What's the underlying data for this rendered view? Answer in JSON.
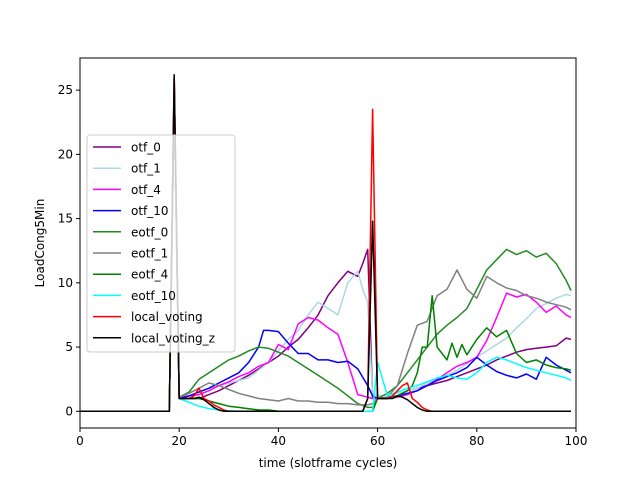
{
  "chart_data": {
    "type": "line",
    "title": "",
    "xlabel": "time (slotframe cycles)",
    "ylabel": "LoadCong5Min",
    "xlim": [
      0,
      100
    ],
    "ylim": [
      -1.3,
      27.5
    ],
    "xticks": [
      0,
      20,
      40,
      60,
      80,
      100
    ],
    "yticks": [
      0,
      5,
      10,
      15,
      20,
      25
    ],
    "grid": false,
    "legend_position": "upper-left",
    "series": [
      {
        "name": "otf_0",
        "color": "#800080",
        "x": [
          0,
          18,
          19,
          20,
          22,
          24,
          26,
          28,
          30,
          32,
          34,
          36,
          38,
          40,
          42,
          44,
          46,
          48,
          50,
          52,
          54,
          56,
          57,
          58,
          59,
          60,
          62,
          64,
          66,
          68,
          70,
          72,
          74,
          76,
          78,
          80,
          82,
          84,
          86,
          88,
          90,
          92,
          94,
          96,
          98,
          99
        ],
        "y": [
          0,
          0,
          26,
          1,
          1,
          1,
          1.3,
          1.6,
          2,
          2.4,
          2.8,
          3.3,
          3.8,
          4.3,
          5,
          5.6,
          6.5,
          7.5,
          9,
          10,
          10.9,
          10.5,
          11.5,
          12.6,
          1,
          1,
          1,
          1.2,
          1.6,
          1.8,
          2,
          2.2,
          2.4,
          2.7,
          3,
          3.3,
          3.6,
          4,
          4.3,
          4.6,
          4.8,
          4.9,
          5,
          5.1,
          5.7,
          5.6
        ]
      },
      {
        "name": "otf_1",
        "color": "#add8e6",
        "x": [
          0,
          18,
          19,
          20,
          22,
          24,
          26,
          28,
          30,
          32,
          34,
          36,
          38,
          40,
          42,
          44,
          46,
          48,
          50,
          52,
          54,
          56,
          57,
          58,
          59,
          60,
          62,
          64,
          66,
          68,
          70,
          72,
          74,
          76,
          78,
          80,
          82,
          84,
          86,
          88,
          90,
          92,
          94,
          96,
          98,
          99
        ],
        "y": [
          0,
          0,
          25,
          1,
          1.2,
          1.5,
          1.8,
          2,
          2.2,
          2.4,
          2.6,
          3.2,
          3.8,
          4.7,
          5.6,
          6.3,
          7.5,
          8.5,
          8,
          7.5,
          10,
          10.9,
          9.5,
          8.5,
          1.3,
          1.2,
          1.3,
          1.4,
          1.6,
          1.8,
          2.2,
          2.5,
          2.8,
          3.2,
          3.7,
          4.2,
          4.7,
          5.2,
          5.7,
          6.5,
          7.2,
          8,
          8.4,
          8.8,
          9.1,
          9
        ]
      },
      {
        "name": "otf_4",
        "color": "#ff00ff",
        "x": [
          0,
          18,
          19,
          20,
          22,
          24,
          26,
          28,
          30,
          32,
          34,
          36,
          38,
          40,
          42,
          44,
          46,
          48,
          50,
          52,
          54,
          56,
          58,
          59,
          60,
          62,
          64,
          66,
          68,
          70,
          72,
          74,
          76,
          78,
          80,
          82,
          84,
          86,
          88,
          90,
          92,
          94,
          96,
          98,
          99
        ],
        "y": [
          0,
          0,
          24,
          1.1,
          1.2,
          1.3,
          1.6,
          2,
          2.3,
          2.7,
          3,
          3.5,
          3.8,
          5.2,
          4.8,
          6.8,
          7.3,
          7.1,
          6.5,
          6,
          3.8,
          1.3,
          1.1,
          1,
          1,
          1,
          1.1,
          1.3,
          1.6,
          2,
          2.5,
          3,
          3.5,
          3.8,
          4.2,
          5.5,
          7.3,
          9.2,
          8.9,
          9.1,
          8.5,
          7.7,
          8.2,
          7.5,
          7.3
        ]
      },
      {
        "name": "otf_10",
        "color": "#0000ff",
        "x": [
          0,
          18,
          19,
          20,
          22,
          24,
          26,
          28,
          30,
          32,
          34,
          36,
          37,
          38,
          40,
          42,
          44,
          46,
          48,
          50,
          52,
          54,
          56,
          58,
          59,
          60,
          62,
          64,
          66,
          68,
          70,
          72,
          74,
          76,
          78,
          80,
          82,
          84,
          86,
          88,
          90,
          92,
          94,
          96,
          98,
          99
        ],
        "y": [
          0,
          0,
          24,
          1,
          1.2,
          1.5,
          1.8,
          2.2,
          2.6,
          3,
          3.8,
          5,
          6.3,
          6.3,
          6.2,
          5.3,
          4.5,
          4.5,
          4,
          4,
          3.8,
          3.9,
          3.3,
          2,
          1.2,
          1,
          1.1,
          1.2,
          1.4,
          1.6,
          2,
          2.4,
          2.7,
          3,
          3.4,
          4.2,
          3.6,
          3.1,
          2.8,
          2.6,
          2.9,
          2.5,
          4.2,
          3.6,
          3.2,
          3
        ]
      },
      {
        "name": "eotf_0",
        "color": "#228b22",
        "x": [
          0,
          18,
          19,
          20,
          22,
          24,
          26,
          28,
          30,
          32,
          34,
          36,
          38,
          40,
          42,
          44,
          46,
          48,
          50,
          52,
          54,
          56,
          58,
          59,
          60,
          62,
          64,
          66,
          68,
          70,
          72,
          74,
          76,
          78,
          80,
          82,
          84,
          86,
          88,
          90,
          92,
          94,
          96,
          98,
          99
        ],
        "y": [
          0,
          0,
          25,
          1.1,
          1.5,
          2.5,
          3,
          3.5,
          4,
          4.3,
          4.7,
          5,
          4.9,
          4.6,
          4.3,
          3.8,
          3.3,
          2.8,
          2.3,
          1.8,
          1.2,
          0.6,
          0.3,
          0.3,
          1,
          1.4,
          2,
          3,
          4,
          5,
          6,
          6.7,
          7.3,
          8,
          9.5,
          11,
          11.8,
          12.6,
          12.2,
          12.5,
          12,
          12.3,
          11.5,
          10.2,
          9.4
        ]
      },
      {
        "name": "eotf_1",
        "color": "#808080",
        "x": [
          0,
          18,
          19,
          20,
          22,
          24,
          26,
          28,
          30,
          32,
          34,
          36,
          38,
          40,
          42,
          44,
          46,
          48,
          50,
          52,
          54,
          56,
          58,
          59,
          60,
          62,
          64,
          66,
          68,
          70,
          72,
          74,
          76,
          78,
          80,
          82,
          84,
          86,
          88,
          90,
          92,
          94,
          96,
          98,
          99
        ],
        "y": [
          0,
          0,
          25,
          1.1,
          1.4,
          1.8,
          2.2,
          2,
          1.7,
          1.4,
          1.2,
          1,
          0.9,
          0.8,
          1,
          0.8,
          0.8,
          0.7,
          0.7,
          0.6,
          0.6,
          0.5,
          0.5,
          0.6,
          1,
          1.1,
          2,
          4.5,
          6.7,
          7,
          9,
          9.5,
          11,
          9.5,
          8.8,
          10.5,
          10,
          9.6,
          9.4,
          9,
          8.8,
          8.5,
          8.3,
          8.1,
          7.9
        ]
      },
      {
        "name": "eotf_4",
        "color": "#008000",
        "x": [
          0,
          18,
          19,
          20,
          22,
          24,
          26,
          28,
          30,
          32,
          34,
          36,
          38,
          40,
          42,
          44,
          46,
          48,
          50,
          52,
          54,
          56,
          58,
          59,
          60,
          62,
          64,
          66,
          67,
          68,
          69,
          70,
          71,
          72,
          73,
          74,
          75,
          76,
          77,
          78,
          79,
          80,
          82,
          84,
          86,
          88,
          90,
          92,
          94,
          96,
          98,
          99
        ],
        "y": [
          0,
          0,
          25,
          1,
          1,
          1,
          0.8,
          0.6,
          0.4,
          0.3,
          0.2,
          0.1,
          0.1,
          0,
          0,
          0,
          0,
          0,
          0,
          0,
          0,
          0,
          0,
          0,
          1,
          1,
          1.2,
          1.6,
          2,
          3,
          5,
          5,
          9,
          5,
          4.5,
          4,
          5.3,
          4.2,
          5.2,
          4.4,
          5,
          5.6,
          6.5,
          5.8,
          6.3,
          4.5,
          3.8,
          4,
          3.6,
          3.4,
          3.3,
          3.2
        ]
      },
      {
        "name": "eotf_10",
        "color": "#00ffff",
        "x": [
          0,
          18,
          19,
          20,
          22,
          24,
          26,
          28,
          30,
          32,
          34,
          36,
          38,
          40,
          42,
          44,
          46,
          48,
          50,
          52,
          54,
          56,
          58,
          59,
          60,
          62,
          64,
          66,
          68,
          70,
          72,
          74,
          76,
          78,
          80,
          82,
          84,
          86,
          88,
          90,
          92,
          94,
          96,
          98,
          99
        ],
        "y": [
          0,
          0,
          25,
          1,
          0.7,
          0.4,
          0.2,
          0.1,
          0.05,
          0,
          0,
          0,
          0,
          0,
          0,
          0,
          0,
          0,
          0,
          0,
          0,
          0,
          0,
          0,
          3.8,
          1.2,
          1.5,
          1.8,
          2,
          2.3,
          2.6,
          2.8,
          2.6,
          2.5,
          3,
          3.8,
          4.2,
          4,
          3.7,
          3.4,
          3.2,
          3,
          2.8,
          2.6,
          2.4
        ]
      },
      {
        "name": "local_voting",
        "color": "#ff0000",
        "x": [
          0,
          18,
          19,
          20,
          21,
          22,
          23,
          24,
          25,
          26,
          27,
          28,
          29,
          30,
          32,
          40,
          50,
          56,
          57,
          58,
          59,
          60,
          61,
          62,
          63,
          64,
          65,
          66,
          67,
          68,
          69,
          70,
          71,
          72,
          80,
          90,
          99
        ],
        "y": [
          0,
          0,
          26,
          1,
          1,
          1,
          1.2,
          1.8,
          1,
          0.8,
          0.5,
          0.3,
          0.1,
          0,
          0,
          0,
          0,
          0,
          0,
          1,
          23.5,
          1,
          1,
          1,
          1.2,
          1.6,
          2,
          2.2,
          1,
          0.7,
          0.3,
          0.1,
          0,
          0,
          0,
          0,
          0
        ]
      },
      {
        "name": "local_voting_z",
        "color": "#000000",
        "x": [
          0,
          18,
          19,
          20,
          21,
          22,
          23,
          24,
          25,
          26,
          27,
          28,
          29,
          30,
          32,
          40,
          50,
          56,
          57,
          58,
          59,
          60,
          61,
          62,
          63,
          64,
          65,
          66,
          67,
          68,
          69,
          70,
          71,
          72,
          80,
          90,
          99
        ],
        "y": [
          0,
          0,
          26.2,
          1,
          1,
          1,
          1,
          1.1,
          0.9,
          0.6,
          0.3,
          0.1,
          0,
          0,
          0,
          0,
          0,
          0,
          0,
          1,
          14.8,
          1,
          1,
          1,
          1,
          1.2,
          1.1,
          0.9,
          0.6,
          0.3,
          0.1,
          0,
          0,
          0,
          0,
          0,
          0
        ]
      }
    ]
  }
}
